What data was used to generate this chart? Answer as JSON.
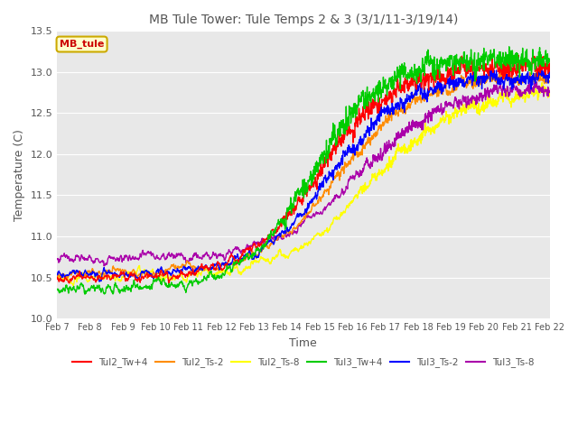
{
  "title": "MB Tule Tower: Tule Temps 2 & 3 (3/1/11-3/19/14)",
  "xlabel": "Time",
  "ylabel": "Temperature (C)",
  "ylim": [
    10.0,
    13.5
  ],
  "xlim": [
    0,
    480
  ],
  "fig_bg": "#ffffff",
  "plot_bg": "#e8e8e8",
  "series": [
    {
      "label": "Tul2_Tw+4",
      "color": "#ff0000"
    },
    {
      "label": "Tul2_Ts-2",
      "color": "#ff8c00"
    },
    {
      "label": "Tul2_Ts-8",
      "color": "#ffff00"
    },
    {
      "label": "Tul3_Tw+4",
      "color": "#00cc00"
    },
    {
      "label": "Tul3_Ts-2",
      "color": "#0000ff"
    },
    {
      "label": "Tul3_Ts-8",
      "color": "#aa00aa"
    }
  ],
  "xtick_labels": [
    "Feb 7",
    "Feb 8",
    "Feb 9",
    "Feb 10",
    "Feb 11",
    "Feb 12",
    "Feb 13",
    "Feb 14",
    "Feb 15",
    "Feb 16",
    "Feb 17",
    "Feb 18",
    "Feb 19",
    "Feb 20",
    "Feb 21",
    "Feb 22"
  ],
  "annotation_text": "MB_tule",
  "annotation_color": "#cc0000",
  "annotation_bg": "#ffffcc",
  "annotation_border": "#ccaa00",
  "title_color": "#555555",
  "grid_color": "#ffffff",
  "label_color": "#555555"
}
